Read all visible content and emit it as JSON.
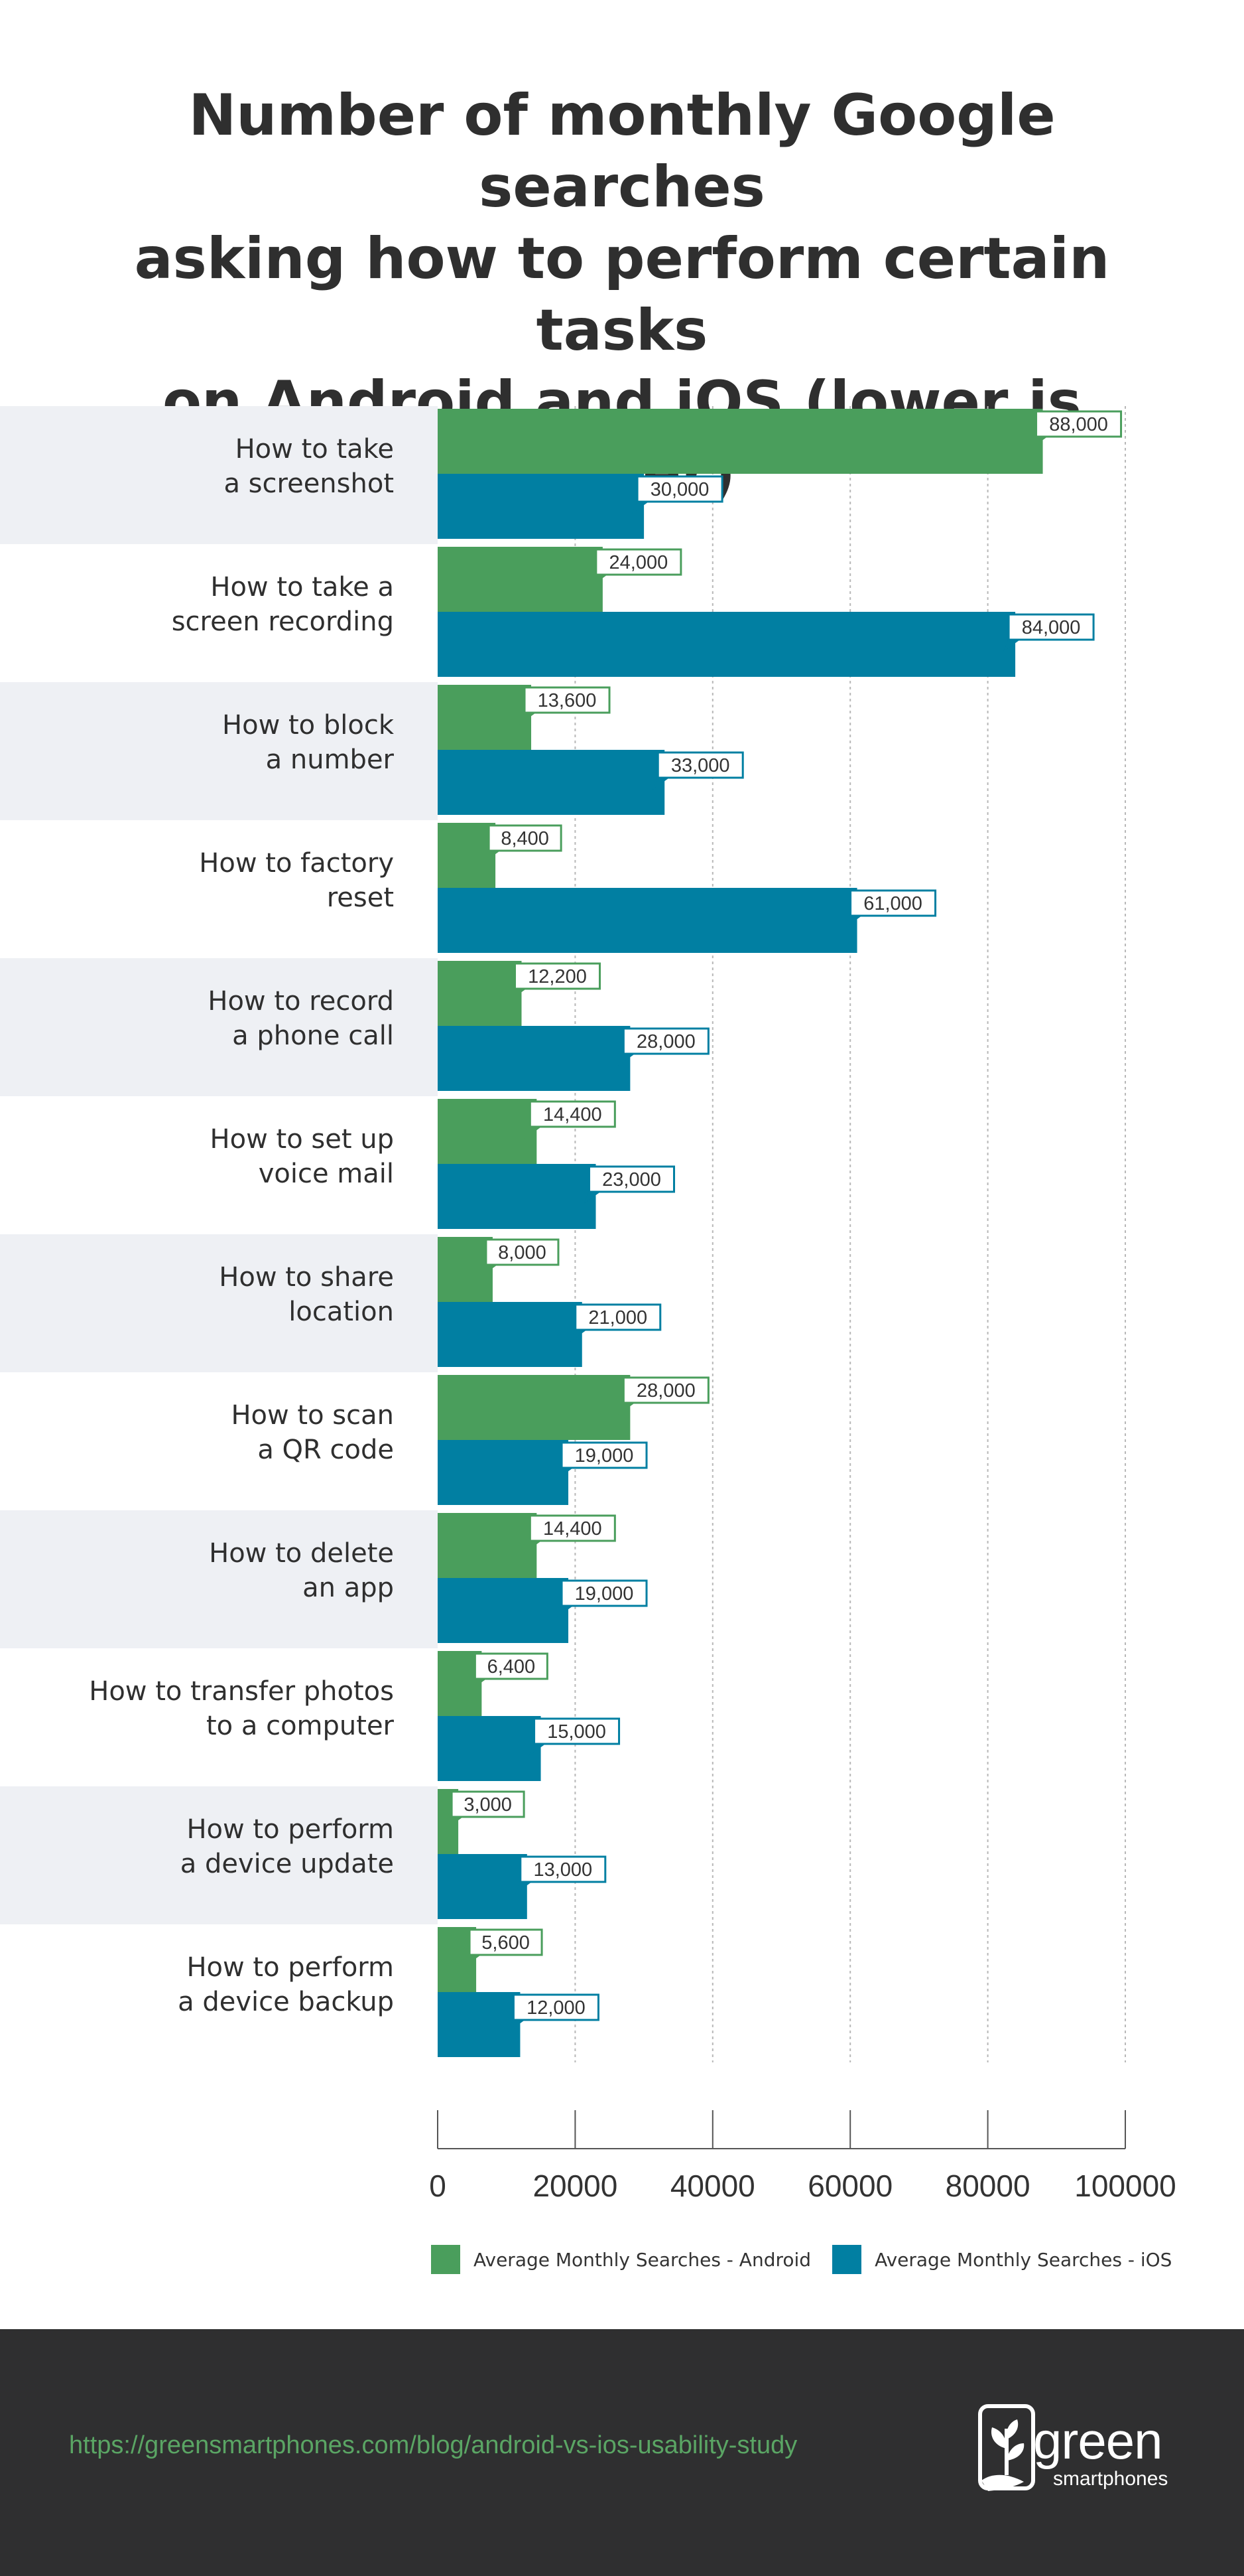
{
  "title_lines": [
    "Number of monthly Google searches",
    "asking how to perform certain tasks",
    "on Android and iOS (lower is better)"
  ],
  "colors": {
    "android": "#4a9e5c",
    "ios": "#017fa2",
    "band": "#eef0f4",
    "footer": "#2f2f30",
    "url": "#5aa564"
  },
  "chart_data": {
    "type": "bar",
    "orientation": "horizontal",
    "categories": [
      [
        "How to take",
        "a screenshot"
      ],
      [
        "How to take a",
        "screen recording"
      ],
      [
        "How to block",
        "a number"
      ],
      [
        "How to factory",
        "reset"
      ],
      [
        "How to record",
        "a phone call"
      ],
      [
        "How to set up",
        "voice mail"
      ],
      [
        "How to share",
        "location"
      ],
      [
        "How to scan",
        "a QR code"
      ],
      [
        "How to delete",
        "an app"
      ],
      [
        "How to transfer photos",
        "to a computer"
      ],
      [
        "How to perform",
        "a device update"
      ],
      [
        "How to perform",
        "a device backup"
      ]
    ],
    "series": [
      {
        "name": "Average Monthly Searches - Android",
        "values": [
          88000,
          24000,
          13600,
          8400,
          12200,
          14400,
          8000,
          28000,
          14400,
          6400,
          3000,
          5600
        ],
        "labels": [
          "88,000",
          "24,000",
          "13,600",
          "8,400",
          "12,200",
          "14,400",
          "8,000",
          "28,000",
          "14,400",
          "6,400",
          "3,000",
          "5,600"
        ]
      },
      {
        "name": "Average Monthly Searches - iOS",
        "values": [
          30000,
          84000,
          33000,
          61000,
          28000,
          23000,
          21000,
          19000,
          19000,
          15000,
          13000,
          12000
        ],
        "labels": [
          "30,000",
          "84,000",
          "33,000",
          "61,000",
          "28,000",
          "23,000",
          "21,000",
          "19,000",
          "19,000",
          "15,000",
          "13,000",
          "12,000"
        ]
      }
    ],
    "xlim": [
      0,
      100000
    ],
    "ticks": [
      "0",
      "20000",
      "40000",
      "60000",
      "80000",
      "100000"
    ],
    "tick_values": [
      0,
      20000,
      40000,
      60000,
      80000,
      100000
    ],
    "grid": true,
    "legend_position": "bottom"
  },
  "footer": {
    "url": "https://greensmartphones.com/blog/android-vs-ios-usability-study",
    "logo_word": "green",
    "logo_sub": "smartphones"
  }
}
